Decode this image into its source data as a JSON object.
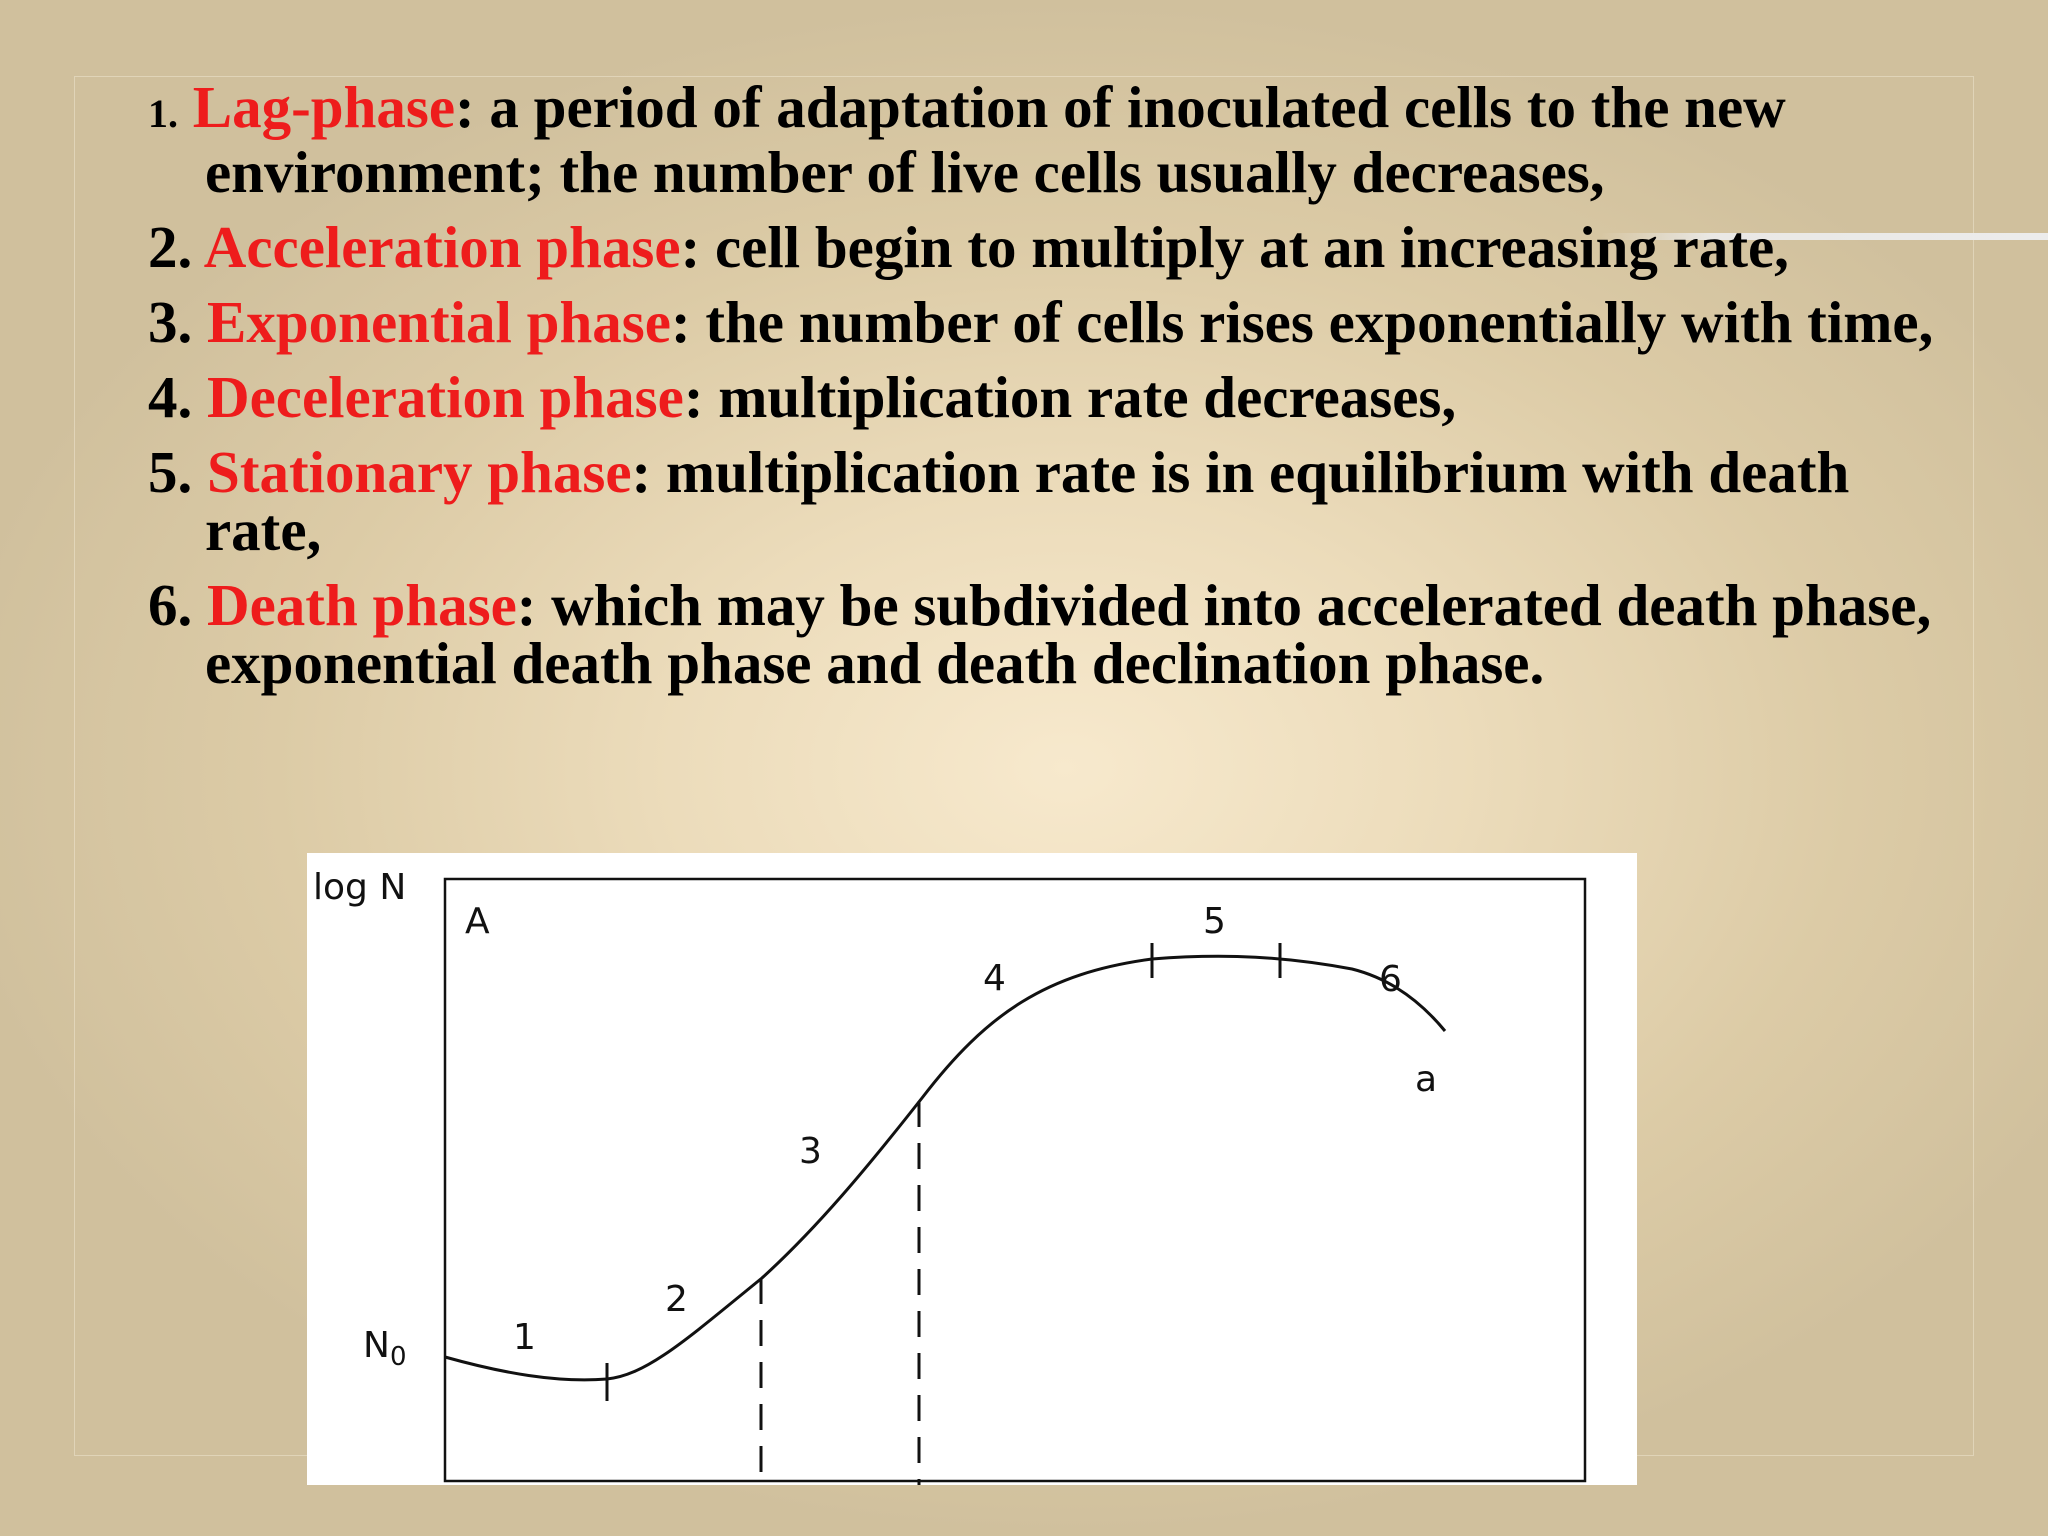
{
  "phases": [
    {
      "number": "1.",
      "term": "Lag-phase",
      "text": ": a period of adaptation of inoculated cells to the new environment; the number of live cells usually decreases,"
    },
    {
      "number": "2.",
      "term": "Acceleration phase",
      "text": ": cell begin to multiply at an increasing rate,"
    },
    {
      "number": "3.",
      "term": "Exponential phase",
      "text": ": the number of cells rises exponentially with time,"
    },
    {
      "number": "4.",
      "term": "Deceleration phase",
      "text": ": multiplication rate decreases,"
    },
    {
      "number": "5.",
      "term": "Stationary phase",
      "text": ": multiplication rate is in equilibrium with death rate,"
    },
    {
      "number": "6.",
      "term": "Death phase",
      "text": ": which may be subdivided into accelerated death phase, exponential death phase and death declination phase."
    }
  ],
  "diagram": {
    "y_axis_label": "log N",
    "panel_label": "A",
    "start_label": "N",
    "start_label_subscript": "0",
    "phase_numbers": [
      "1",
      "2",
      "3",
      "4",
      "5",
      "6"
    ],
    "curve_label": "a",
    "colors": {
      "curve": "#000000",
      "text_emphasis": "#ee1c1c"
    }
  }
}
